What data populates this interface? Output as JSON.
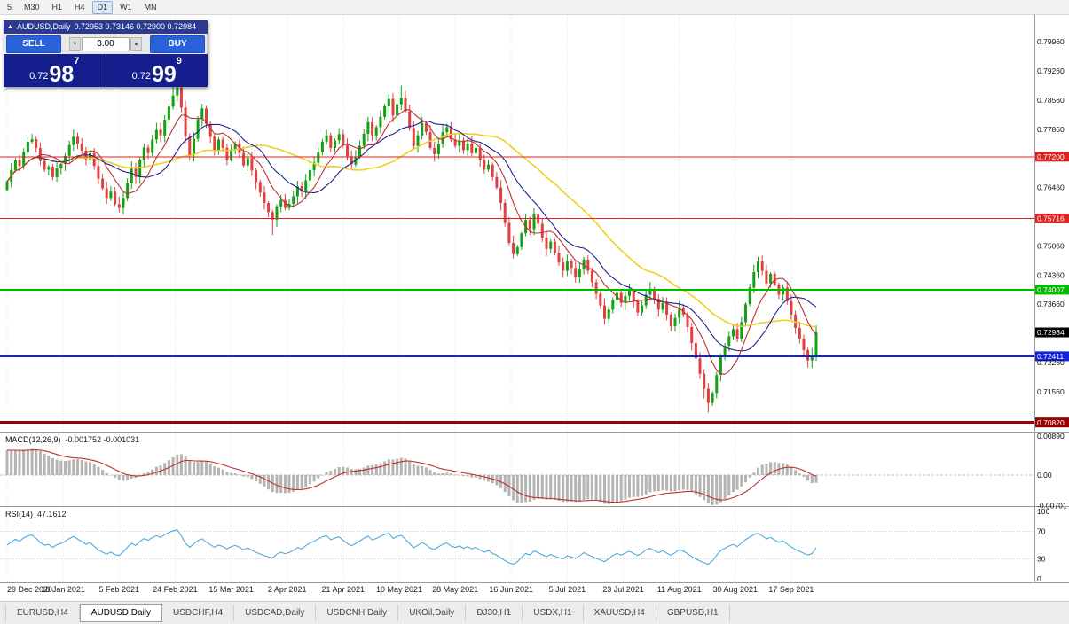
{
  "toolbar": {
    "timeframes": [
      {
        "label": "5",
        "active": false
      },
      {
        "label": "M30",
        "active": false
      },
      {
        "label": "H1",
        "active": false
      },
      {
        "label": "H4",
        "active": false
      },
      {
        "label": "D1",
        "active": true
      },
      {
        "label": "W1",
        "active": false
      },
      {
        "label": "MN",
        "active": false
      }
    ]
  },
  "trade_panel": {
    "collapse_icon": "▲",
    "title": "AUDUSD,Daily",
    "ohlc": "0.72953 0.73146 0.72900 0.72984",
    "sell_label": "SELL",
    "buy_label": "BUY",
    "volume": "3.00",
    "vol_down_icon": "▼",
    "vol_up_icon": "▲",
    "sell_price": {
      "prefix": "0.72",
      "big": "98",
      "sup": "7"
    },
    "buy_price": {
      "prefix": "0.72",
      "big": "99",
      "sup": "9"
    }
  },
  "chart_data": {
    "type": "candlestick",
    "symbol": "AUDUSD",
    "timeframe": "Daily",
    "current_bar_ohlc": {
      "open": 0.72953,
      "high": 0.73146,
      "low": 0.729,
      "close": 0.72984
    },
    "price_axis": {
      "min": 0.706,
      "max": 0.806,
      "tick_start": 0.7996,
      "tick_step": 0.007,
      "decimals": 5
    },
    "colors": {
      "up": "#13a113",
      "down": "#e04040"
    },
    "x_labels": [
      {
        "label": "29 Dec 2020",
        "bar": 0
      },
      {
        "label": "18 Jan 2021",
        "bar": 13.5
      },
      {
        "label": "5 Feb 2021",
        "bar": 27
      },
      {
        "label": "24 Feb 2021",
        "bar": 40.5
      },
      {
        "label": "15 Mar 2021",
        "bar": 54
      },
      {
        "label": "2 Apr 2021",
        "bar": 67.5
      },
      {
        "label": "21 Apr 2021",
        "bar": 81
      },
      {
        "label": "10 May 2021",
        "bar": 94.5
      },
      {
        "label": "28 May 2021",
        "bar": 108
      },
      {
        "label": "16 Jun 2021",
        "bar": 121.5
      },
      {
        "label": "5 Jul 2021",
        "bar": 135
      },
      {
        "label": "23 Jul 2021",
        "bar": 148.5
      },
      {
        "label": "11 Aug 2021",
        "bar": 162
      },
      {
        "label": "30 Aug 2021",
        "bar": 175.5
      },
      {
        "label": "17 Sep 2021",
        "bar": 189
      }
    ],
    "closes": [
      0.766,
      0.7688,
      0.7712,
      0.7698,
      0.7731,
      0.7756,
      0.7762,
      0.7741,
      0.771,
      0.7689,
      0.7696,
      0.7671,
      0.7692,
      0.7703,
      0.7722,
      0.7748,
      0.7768,
      0.7751,
      0.7735,
      0.7714,
      0.7729,
      0.7698,
      0.7667,
      0.7644,
      0.7621,
      0.7636,
      0.7606,
      0.7597,
      0.7621,
      0.7656,
      0.7691,
      0.7671,
      0.7712,
      0.7742,
      0.7729,
      0.7761,
      0.7784,
      0.7771,
      0.7809,
      0.784,
      0.7867,
      0.7886,
      0.7838,
      0.7768,
      0.7724,
      0.7763,
      0.781,
      0.7836,
      0.7799,
      0.7768,
      0.7734,
      0.7761,
      0.7741,
      0.7713,
      0.7737,
      0.7751,
      0.7729,
      0.7699,
      0.7717,
      0.7687,
      0.7659,
      0.7634,
      0.7609,
      0.7587,
      0.7569,
      0.7601,
      0.7616,
      0.7597,
      0.7607,
      0.7625,
      0.7649,
      0.7636,
      0.7663,
      0.7688,
      0.7706,
      0.7731,
      0.7756,
      0.7771,
      0.7741,
      0.7759,
      0.7774,
      0.7747,
      0.7721,
      0.7701,
      0.7719,
      0.7746,
      0.7775,
      0.7803,
      0.7771,
      0.7791,
      0.7816,
      0.7841,
      0.7859,
      0.7819,
      0.7846,
      0.7861,
      0.7829,
      0.7789,
      0.7746,
      0.7771,
      0.7801,
      0.7779,
      0.7741,
      0.7726,
      0.7751,
      0.7779,
      0.7791,
      0.7761,
      0.7746,
      0.7759,
      0.7736,
      0.7751,
      0.7728,
      0.7741,
      0.7713,
      0.7689,
      0.7701,
      0.7671,
      0.7646,
      0.7609,
      0.7561,
      0.7513,
      0.7486,
      0.7503,
      0.7536,
      0.7568,
      0.7546,
      0.7581,
      0.7559,
      0.7526,
      0.7499,
      0.7516,
      0.7489,
      0.7466,
      0.7446,
      0.7469,
      0.7453,
      0.7431,
      0.7449,
      0.7473,
      0.7446,
      0.7419,
      0.7391,
      0.7363,
      0.7331,
      0.7353,
      0.7376,
      0.7393,
      0.7369,
      0.7386,
      0.7399,
      0.7373,
      0.7346,
      0.7363,
      0.7389,
      0.7403,
      0.7379,
      0.7353,
      0.7369,
      0.7341,
      0.7313,
      0.7333,
      0.7356,
      0.7341,
      0.7311,
      0.7273,
      0.7236,
      0.7199,
      0.7163,
      0.7129,
      0.7153,
      0.7196,
      0.7241,
      0.7266,
      0.7289,
      0.7306,
      0.7283,
      0.7323,
      0.7366,
      0.7406,
      0.7443,
      0.7469,
      0.7446,
      0.7416,
      0.7439,
      0.7413,
      0.7389,
      0.7406,
      0.7373,
      0.7341,
      0.7309,
      0.7283,
      0.7256,
      0.7231,
      0.7243,
      0.72984
    ],
    "spikes": [
      {
        "i": 40,
        "h": 0.7896
      },
      {
        "i": 41,
        "h": 0.7917
      },
      {
        "i": 64,
        "l": 0.7532
      },
      {
        "i": 95,
        "h": 0.7891
      },
      {
        "i": 122,
        "l": 0.7478
      },
      {
        "i": 168,
        "l": 0.714
      },
      {
        "i": 169,
        "l": 0.7106
      },
      {
        "i": 181,
        "h": 0.7478
      },
      {
        "i": 193,
        "l": 0.722
      },
      {
        "i": 195,
        "h": 0.7315
      }
    ],
    "levels": [
      {
        "value": 0.772,
        "label": "0.77200",
        "color": "#dd2222",
        "width": 1
      },
      {
        "value": 0.75716,
        "label": "0.75716",
        "color": "#dd2222",
        "width": 1
      },
      {
        "value": 0.74007,
        "label": "0.74007",
        "color": "#00bb00",
        "width": 2
      },
      {
        "value": 0.72411,
        "label": "0.72411",
        "color": "#1122dd",
        "width": 2
      },
      {
        "value": 0.7095,
        "label": "",
        "color": "#223366",
        "width": 1
      },
      {
        "value": 0.7082,
        "label": "0.70820",
        "color": "#990000",
        "width": 3
      }
    ],
    "current_price": {
      "value": 0.72984,
      "label": "0.72984",
      "color": "#000000"
    },
    "moving_averages": [
      {
        "period": 34,
        "color": "#f0d020",
        "width": 1.6
      },
      {
        "period": 16,
        "color": "#202090",
        "width": 1.1
      },
      {
        "period": 8,
        "color": "#c03030",
        "width": 1.1
      }
    ],
    "indicators": {
      "macd": {
        "name": "MACD(12,26,9)",
        "values_text": "-0.001752 -0.001031",
        "range": [
          0.0095,
          -0.0071
        ],
        "axis_ticks": [
          {
            "v": 0.0089,
            "label": "0.00890"
          },
          {
            "v": 0,
            "label": "0.00"
          },
          {
            "v": -0.00701,
            "label": "-0.00701"
          }
        ],
        "hist_color": "#b4b4b4",
        "signal_color": "#c03030"
      },
      "rsi": {
        "name": "RSI(14)",
        "value_text": "47.1612",
        "axis_ticks": [
          {
            "v": 100,
            "label": "100"
          },
          {
            "v": 70,
            "label": "70"
          },
          {
            "v": 30,
            "label": "30"
          },
          {
            "v": 0,
            "label": "0"
          }
        ],
        "level_lines": [
          70,
          30
        ],
        "color": "#3fa3dc"
      }
    }
  },
  "bottom_tabs": {
    "items": [
      {
        "label": "EURUSD,H4",
        "active": false
      },
      {
        "label": "AUDUSD,Daily",
        "active": true
      },
      {
        "label": "USDCHF,H4",
        "active": false
      },
      {
        "label": "USDCAD,Daily",
        "active": false
      },
      {
        "label": "USDCNH,Daily",
        "active": false
      },
      {
        "label": "UKOil,Daily",
        "active": false
      },
      {
        "label": "DJ30,H1",
        "active": false
      },
      {
        "label": "USDX,H1",
        "active": false
      },
      {
        "label": "XAUUSD,H4",
        "active": false
      },
      {
        "label": "GBPUSD,H1",
        "active": false
      }
    ]
  }
}
